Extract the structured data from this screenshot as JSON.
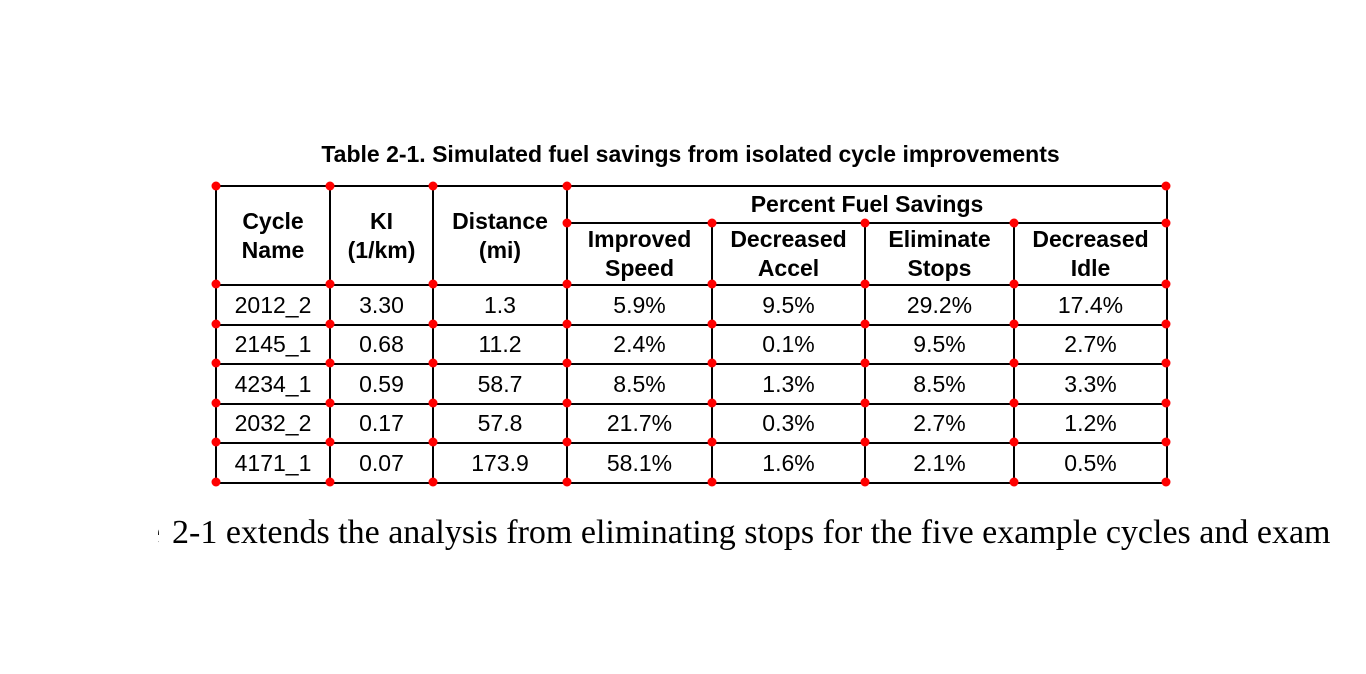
{
  "page": {
    "background": "#ffffff"
  },
  "title": "Table 2-1. Simulated fuel savings from isolated cycle improvements",
  "table": {
    "span_header": "Percent Fuel Savings",
    "columns": [
      {
        "label": "Cycle Name",
        "lines": [
          "Cycle",
          "Name"
        ]
      },
      {
        "label": "KI (1/km)",
        "lines": [
          "KI",
          "(1/km)"
        ]
      },
      {
        "label": "Distance (mi)",
        "lines": [
          "Distance",
          "(mi)"
        ]
      },
      {
        "label": "Improved Speed",
        "lines": [
          "Improved",
          "Speed"
        ]
      },
      {
        "label": "Decreased Accel",
        "lines": [
          "Decreased",
          "Accel"
        ]
      },
      {
        "label": "Eliminate Stops",
        "lines": [
          "Eliminate",
          "Stops"
        ]
      },
      {
        "label": "Decreased Idle",
        "lines": [
          "Decreased",
          "Idle"
        ]
      }
    ],
    "rows": [
      [
        "2012_2",
        "3.30",
        "1.3",
        "5.9%",
        "9.5%",
        "29.2%",
        "17.4%"
      ],
      [
        "2145_1",
        "0.68",
        "11.2",
        "2.4%",
        "0.1%",
        "9.5%",
        "2.7%"
      ],
      [
        "4234_1",
        "0.59",
        "58.7",
        "8.5%",
        "1.3%",
        "8.5%",
        "3.3%"
      ],
      [
        "2032_2",
        "0.17",
        "57.8",
        "21.7%",
        "0.3%",
        "2.7%",
        "1.2%"
      ],
      [
        "4171_1",
        "0.07",
        "173.9",
        "58.1%",
        "1.6%",
        "2.1%",
        "0.5%"
      ]
    ]
  },
  "markers": {
    "color": "#ff0000",
    "shape": "circle",
    "meaning": "red marker dot at each table grid-line intersection"
  },
  "paragraph": {
    "clipped_left_fragment": "e",
    "text": "2-1 extends the analysis from eliminating stops for the five example cycles and exam"
  }
}
